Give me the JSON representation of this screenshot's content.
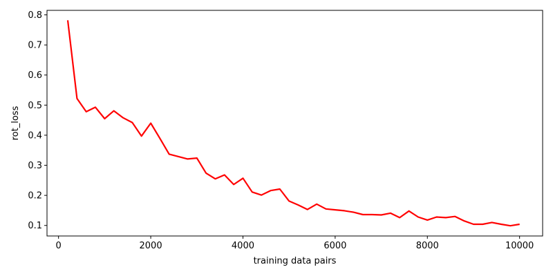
{
  "chart_data": {
    "type": "line",
    "title": "",
    "xlabel": "training data pairs",
    "ylabel": "rot_loss",
    "xlim": [
      -250,
      10500
    ],
    "ylim": [
      0.065,
      0.815
    ],
    "xticks": [
      0,
      2000,
      4000,
      6000,
      8000,
      10000
    ],
    "yticks": [
      0.1,
      0.2,
      0.3,
      0.4,
      0.5,
      0.6,
      0.7,
      0.8
    ],
    "grid": false,
    "legend": "none",
    "series": [
      {
        "color": "#ff0000",
        "x": [
          200,
          400,
          600,
          800,
          1000,
          1200,
          1400,
          1600,
          1800,
          2000,
          2200,
          2400,
          2600,
          2800,
          3000,
          3200,
          3400,
          3600,
          3800,
          4000,
          4200,
          4400,
          4600,
          4800,
          5000,
          5200,
          5400,
          5600,
          5800,
          6000,
          6200,
          6400,
          6600,
          6800,
          7000,
          7200,
          7400,
          7600,
          7800,
          8000,
          8200,
          8400,
          8600,
          8800,
          9000,
          9200,
          9400,
          9600,
          9800,
          10000
        ],
        "values": [
          0.782,
          0.522,
          0.478,
          0.493,
          0.455,
          0.481,
          0.458,
          0.442,
          0.397,
          0.44,
          0.389,
          0.337,
          0.329,
          0.321,
          0.324,
          0.274,
          0.255,
          0.268,
          0.236,
          0.257,
          0.211,
          0.201,
          0.216,
          0.221,
          0.181,
          0.168,
          0.153,
          0.171,
          0.155,
          0.152,
          0.149,
          0.144,
          0.136,
          0.136,
          0.135,
          0.141,
          0.126,
          0.148,
          0.128,
          0.118,
          0.128,
          0.126,
          0.13,
          0.115,
          0.104,
          0.104,
          0.11,
          0.104,
          0.099,
          0.104
        ]
      }
    ]
  }
}
